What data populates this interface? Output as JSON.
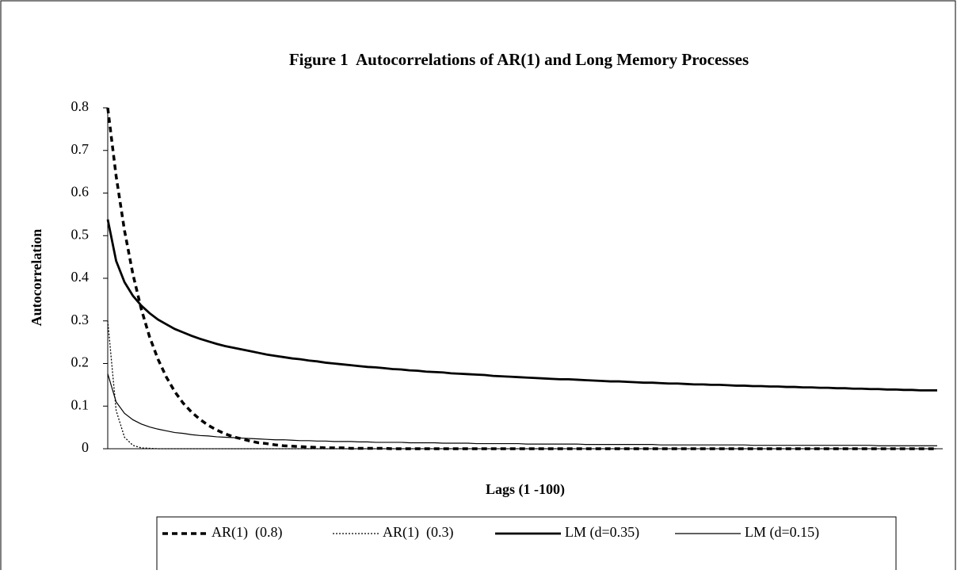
{
  "chart_data": {
    "type": "line",
    "title": "Figure 1  Autocorrelations of AR(1) and Long Memory Processes",
    "x_label": "Lags (1 -100)",
    "y_label": "Autocorrelation",
    "x": [
      1,
      2,
      3,
      4,
      5,
      6,
      7,
      8,
      9,
      10,
      11,
      12,
      13,
      14,
      15,
      16,
      17,
      18,
      19,
      20,
      21,
      22,
      23,
      24,
      25,
      26,
      27,
      28,
      29,
      30,
      31,
      32,
      33,
      34,
      35,
      36,
      37,
      38,
      39,
      40,
      41,
      42,
      43,
      44,
      45,
      46,
      47,
      48,
      49,
      50,
      51,
      52,
      53,
      54,
      55,
      56,
      57,
      58,
      59,
      60,
      61,
      62,
      63,
      64,
      65,
      66,
      67,
      68,
      69,
      70,
      71,
      72,
      73,
      74,
      75,
      76,
      77,
      78,
      79,
      80,
      81,
      82,
      83,
      84,
      85,
      86,
      87,
      88,
      89,
      90,
      91,
      92,
      93,
      94,
      95,
      96,
      97,
      98,
      99,
      100
    ],
    "xlim": [
      1,
      100
    ],
    "ylim": [
      0,
      0.8
    ],
    "yticks": [
      0,
      0.1,
      0.2,
      0.3,
      0.4,
      0.5,
      0.6,
      0.7,
      0.8
    ],
    "grid": false,
    "legend": "bottom",
    "series": [
      {
        "name": "AR(1)  (0.8)",
        "color": "#000000",
        "style": "dashed",
        "width": 3.5,
        "values": [
          0.8,
          0.64,
          0.512,
          0.41,
          0.328,
          0.262,
          0.21,
          0.168,
          0.134,
          0.107,
          0.086,
          0.069,
          0.055,
          0.044,
          0.035,
          0.028,
          0.023,
          0.018,
          0.014,
          0.012,
          0.009,
          0.007,
          0.006,
          0.005,
          0.004,
          0.003,
          0.002,
          0.002,
          0.002,
          0.001,
          0.001,
          0.001,
          0.001,
          0.001,
          0,
          0,
          0,
          0,
          0,
          0,
          0,
          0,
          0,
          0,
          0,
          0,
          0,
          0,
          0,
          0,
          0,
          0,
          0,
          0,
          0,
          0,
          0,
          0,
          0,
          0,
          0,
          0,
          0,
          0,
          0,
          0,
          0,
          0,
          0,
          0,
          0,
          0,
          0,
          0,
          0,
          0,
          0,
          0,
          0,
          0,
          0,
          0,
          0,
          0,
          0,
          0,
          0,
          0,
          0,
          0,
          0,
          0,
          0,
          0,
          0,
          0,
          0,
          0,
          0,
          0
        ]
      },
      {
        "name": "AR(1)  (0.3)",
        "color": "#000000",
        "style": "dotted",
        "width": 1.3,
        "values": [
          0.3,
          0.09,
          0.027,
          0.008,
          0.002,
          0.001,
          0,
          0,
          0,
          0,
          0,
          0,
          0,
          0,
          0,
          0,
          0,
          0,
          0,
          0,
          0,
          0,
          0,
          0,
          0,
          0,
          0,
          0,
          0,
          0,
          0,
          0,
          0,
          0,
          0,
          0,
          0,
          0,
          0,
          0,
          0,
          0,
          0,
          0,
          0,
          0,
          0,
          0,
          0,
          0,
          0,
          0,
          0,
          0,
          0,
          0,
          0,
          0,
          0,
          0,
          0,
          0,
          0,
          0,
          0,
          0,
          0,
          0,
          0,
          0,
          0,
          0,
          0,
          0,
          0,
          0,
          0,
          0,
          0,
          0,
          0,
          0,
          0,
          0,
          0,
          0,
          0,
          0,
          0,
          0,
          0,
          0,
          0,
          0,
          0,
          0,
          0,
          0,
          0,
          0
        ]
      },
      {
        "name": "LM (d=0.35)",
        "color": "#000000",
        "style": "solid",
        "width": 2.8,
        "values": [
          0.538,
          0.441,
          0.391,
          0.359,
          0.336,
          0.318,
          0.303,
          0.292,
          0.281,
          0.273,
          0.265,
          0.258,
          0.252,
          0.246,
          0.241,
          0.237,
          0.233,
          0.229,
          0.225,
          0.221,
          0.218,
          0.215,
          0.212,
          0.21,
          0.207,
          0.205,
          0.202,
          0.2,
          0.198,
          0.196,
          0.194,
          0.192,
          0.191,
          0.189,
          0.187,
          0.186,
          0.184,
          0.183,
          0.181,
          0.18,
          0.179,
          0.177,
          0.176,
          0.175,
          0.174,
          0.173,
          0.171,
          0.17,
          0.169,
          0.168,
          0.167,
          0.166,
          0.165,
          0.164,
          0.163,
          0.163,
          0.162,
          0.161,
          0.16,
          0.159,
          0.158,
          0.158,
          0.157,
          0.156,
          0.155,
          0.155,
          0.154,
          0.153,
          0.153,
          0.152,
          0.151,
          0.151,
          0.15,
          0.15,
          0.149,
          0.148,
          0.148,
          0.147,
          0.147,
          0.146,
          0.146,
          0.145,
          0.145,
          0.144,
          0.144,
          0.143,
          0.143,
          0.142,
          0.142,
          0.141,
          0.141,
          0.14,
          0.14,
          0.139,
          0.139,
          0.138,
          0.138,
          0.137,
          0.137,
          0.137
        ]
      },
      {
        "name": "LM (d=0.15)",
        "color": "#000000",
        "style": "solid",
        "width": 1.2,
        "values": [
          0.176,
          0.11,
          0.083,
          0.068,
          0.058,
          0.051,
          0.046,
          0.042,
          0.038,
          0.036,
          0.033,
          0.031,
          0.03,
          0.028,
          0.027,
          0.026,
          0.025,
          0.024,
          0.023,
          0.022,
          0.021,
          0.021,
          0.02,
          0.019,
          0.019,
          0.018,
          0.018,
          0.017,
          0.017,
          0.017,
          0.016,
          0.016,
          0.015,
          0.015,
          0.015,
          0.015,
          0.014,
          0.014,
          0.014,
          0.014,
          0.013,
          0.013,
          0.013,
          0.013,
          0.012,
          0.012,
          0.012,
          0.012,
          0.012,
          0.012,
          0.011,
          0.011,
          0.011,
          0.011,
          0.011,
          0.011,
          0.011,
          0.01,
          0.01,
          0.01,
          0.01,
          0.01,
          0.01,
          0.01,
          0.01,
          0.01,
          0.009,
          0.009,
          0.009,
          0.009,
          0.009,
          0.009,
          0.009,
          0.009,
          0.009,
          0.009,
          0.009,
          0.008,
          0.008,
          0.008,
          0.008,
          0.008,
          0.008,
          0.008,
          0.008,
          0.008,
          0.008,
          0.008,
          0.008,
          0.008,
          0.008,
          0.008,
          0.007,
          0.007,
          0.007,
          0.007,
          0.007,
          0.007,
          0.007,
          0.007
        ]
      }
    ]
  }
}
